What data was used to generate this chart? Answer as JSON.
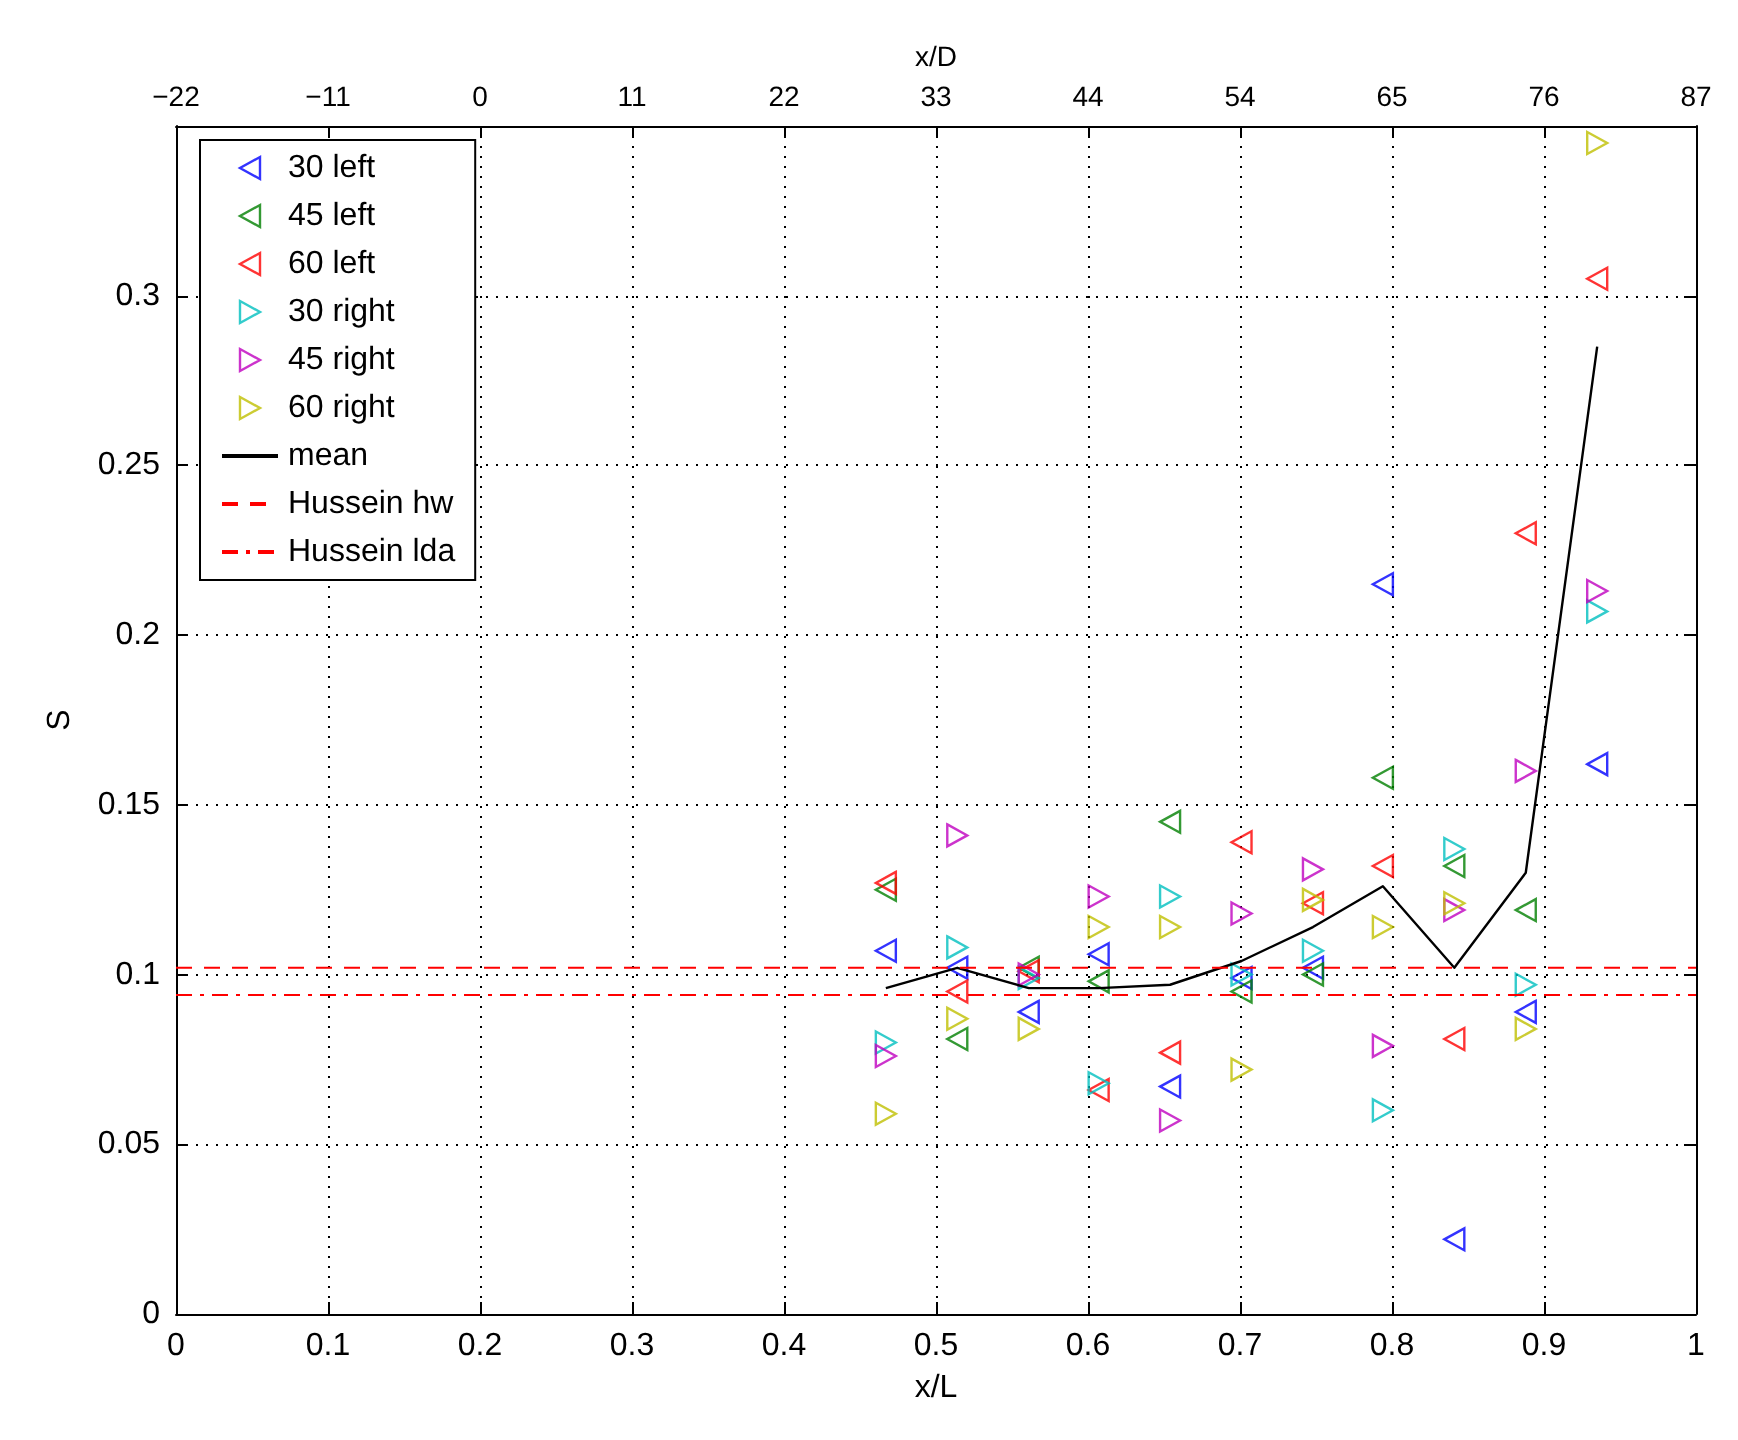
{
  "chart_data": {
    "type": "scatter",
    "xlabel": "x/L",
    "ylabel": "S",
    "x2label": "x/D",
    "x": [
      0.467,
      0.514,
      0.561,
      0.607,
      0.654,
      0.701,
      0.748,
      0.794,
      0.841,
      0.888,
      0.935
    ],
    "series": [
      {
        "name": "30 left",
        "color": "#0000ff",
        "marker": "triangle-left",
        "values": [
          0.107,
          0.102,
          0.089,
          0.106,
          0.067,
          0.099,
          0.102,
          0.215,
          0.022,
          0.089,
          0.162
        ]
      },
      {
        "name": "45 left",
        "color": "#008000",
        "marker": "triangle-left",
        "values": [
          0.125,
          0.081,
          0.102,
          0.098,
          0.145,
          0.095,
          0.1,
          0.158,
          0.132,
          0.119,
          null
        ]
      },
      {
        "name": "60 left",
        "color": "#ff0000",
        "marker": "triangle-left",
        "values": [
          0.127,
          0.095,
          0.101,
          0.066,
          0.077,
          0.139,
          0.121,
          0.132,
          0.081,
          0.23,
          0.305
        ]
      },
      {
        "name": "30 right",
        "color": "#00bfbf",
        "marker": "triangle-right",
        "values": [
          0.08,
          0.108,
          0.099,
          0.068,
          0.123,
          0.1,
          0.107,
          0.06,
          0.137,
          0.097,
          0.207
        ]
      },
      {
        "name": "45 right",
        "color": "#bf00bf",
        "marker": "triangle-right",
        "values": [
          0.076,
          0.141,
          0.1,
          0.123,
          0.057,
          0.118,
          0.131,
          0.079,
          0.119,
          0.16,
          0.213
        ]
      },
      {
        "name": "60 right",
        "color": "#bfbf00",
        "marker": "triangle-right",
        "values": [
          0.059,
          0.087,
          0.084,
          0.114,
          0.114,
          0.072,
          0.122,
          0.114,
          0.121,
          0.084,
          0.345
        ]
      },
      {
        "name": "mean",
        "type": "line",
        "color": "#000000",
        "marker": "none",
        "values": [
          0.096,
          0.102,
          0.096,
          0.096,
          0.097,
          0.104,
          0.114,
          0.126,
          0.102,
          0.13,
          0.285
        ]
      }
    ],
    "ref_lines": [
      {
        "axis": "y",
        "value": 0.102,
        "label": "Hussein hw",
        "color": "#ff0000",
        "line_style": "dashed"
      },
      {
        "axis": "y",
        "value": 0.094,
        "label": "Hussein lda",
        "color": "#ff0000",
        "line_style": "dashdot"
      }
    ],
    "xlim": [
      0,
      1
    ],
    "xticks": [
      0,
      0.1,
      0.2,
      0.3,
      0.4,
      0.5,
      0.6,
      0.7,
      0.8,
      0.9,
      1
    ],
    "x2lim": [
      -21.8,
      87.2
    ],
    "x2ticks": [
      {
        "value": -21.8,
        "label": "−22"
      },
      {
        "value": -10.9,
        "label": "−11"
      },
      {
        "value": 0,
        "label": "0"
      },
      {
        "value": 10.9,
        "label": "11"
      },
      {
        "value": 21.8,
        "label": "22"
      },
      {
        "value": 32.7,
        "label": "33"
      },
      {
        "value": 43.6,
        "label": "44"
      },
      {
        "value": 54.5,
        "label": "54"
      },
      {
        "value": 65.4,
        "label": "65"
      },
      {
        "value": 76.3,
        "label": "76"
      },
      {
        "value": 87.2,
        "label": "87"
      }
    ],
    "ylim": [
      0,
      0.35
    ],
    "yticks": [
      0,
      0.05,
      0.1,
      0.15,
      0.2,
      0.25,
      0.3
    ],
    "grid": true,
    "legend": "top left"
  }
}
